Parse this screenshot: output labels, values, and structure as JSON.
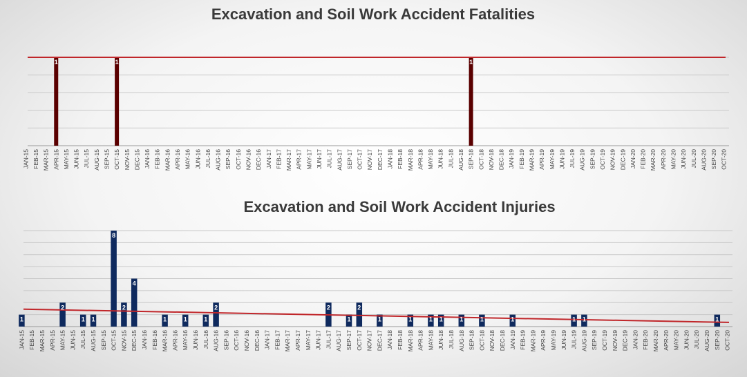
{
  "chart_data": [
    {
      "type": "bar",
      "title": "Excavation and Soil Work Accident Fatalities",
      "xlabel": "",
      "ylabel": "",
      "ylim": [
        0,
        1
      ],
      "grid": true,
      "legend": "none",
      "colors": {
        "bar": "#5a0000",
        "trend": "#c0262a"
      },
      "categories": [
        "JAN-15",
        "FEB-15",
        "MAR-15",
        "APR-15",
        "MAY-15",
        "JUN-15",
        "JUL-15",
        "AUG-15",
        "SEP-15",
        "OCT-15",
        "NOV-15",
        "DEC-15",
        "JAN-16",
        "FEB-16",
        "MAR-16",
        "APR-16",
        "MAY-16",
        "JUN-16",
        "JUL-16",
        "AUG-16",
        "SEP-16",
        "OCT-16",
        "NOV-16",
        "DEC-16",
        "JAN-17",
        "FEB-17",
        "MAR-17",
        "APR-17",
        "MAY-17",
        "JUN-17",
        "JUL-17",
        "AUG-17",
        "SEP-17",
        "OCT-17",
        "NOV-17",
        "DEC-17",
        "JAN-18",
        "FEB-18",
        "MAR-18",
        "APR-18",
        "MAY-18",
        "JUN-18",
        "JUL-18",
        "AUG-18",
        "SEP-18",
        "OCT-18",
        "NOV-18",
        "DEC-18",
        "JAN-19",
        "FEB-19",
        "MAR-19",
        "APR-19",
        "MAY-19",
        "JUN-19",
        "JUL-19",
        "AUG-19",
        "SEP-19",
        "OCT-19",
        "NOV-19",
        "DEC-19",
        "JAN-20",
        "FEB-20",
        "MAR-20",
        "APR-20",
        "MAY-20",
        "JUN-20",
        "JUL-20",
        "AUG-20",
        "SEP-20",
        "OCT-20"
      ],
      "values": [
        0,
        0,
        0,
        1,
        0,
        0,
        0,
        0,
        0,
        1,
        0,
        0,
        0,
        0,
        0,
        0,
        0,
        0,
        0,
        0,
        0,
        0,
        0,
        0,
        0,
        0,
        0,
        0,
        0,
        0,
        0,
        0,
        0,
        0,
        0,
        0,
        0,
        0,
        0,
        0,
        0,
        0,
        0,
        0,
        1,
        0,
        0,
        0,
        0,
        0,
        0,
        0,
        0,
        0,
        0,
        0,
        0,
        0,
        0,
        0,
        0,
        0,
        0,
        0,
        0,
        0,
        0,
        0,
        0,
        0
      ],
      "trendline": {
        "start": 1,
        "end": 1
      }
    },
    {
      "type": "bar",
      "title": "Excavation and Soil Work Accident Injuries",
      "xlabel": "",
      "ylabel": "",
      "ylim": [
        0,
        8
      ],
      "grid": true,
      "legend": "none",
      "colors": {
        "bar": "#0f2a5e",
        "trend": "#c0262a"
      },
      "categories": [
        "JAN-15",
        "FEB-15",
        "MAR-15",
        "APR-15",
        "MAY-15",
        "JUN-15",
        "JUL-15",
        "AUG-15",
        "SEP-15",
        "OCT-15",
        "NOV-15",
        "DEC-15",
        "JAN-16",
        "FEB-16",
        "MAR-16",
        "APR-16",
        "MAY-16",
        "JUN-16",
        "JUL-16",
        "AUG-16",
        "SEP-16",
        "OCT-16",
        "NOV-16",
        "DEC-16",
        "JAN-17",
        "FEB-17",
        "MAR-17",
        "APR-17",
        "MAY-17",
        "JUN-17",
        "JUL-17",
        "AUG-17",
        "SEP-17",
        "OCT-17",
        "NOV-17",
        "DEC-17",
        "JAN-18",
        "FEB-18",
        "MAR-18",
        "APR-18",
        "MAY-18",
        "JUN-18",
        "JUL-18",
        "AUG-18",
        "SEP-18",
        "OCT-18",
        "NOV-18",
        "DEC-18",
        "JAN-19",
        "FEB-19",
        "MAR-19",
        "APR-19",
        "MAY-19",
        "JUN-19",
        "JUL-19",
        "AUG-19",
        "SEP-19",
        "OCT-19",
        "NOV-19",
        "DEC-19",
        "JAN-20",
        "FEB-20",
        "MAR-20",
        "APR-20",
        "MAY-20",
        "JUN-20",
        "JUL-20",
        "AUG-20",
        "SEP-20",
        "OCT-20"
      ],
      "values": [
        1,
        0,
        0,
        0,
        2,
        0,
        1,
        1,
        0,
        8,
        2,
        4,
        0,
        0,
        1,
        0,
        1,
        0,
        1,
        2,
        0,
        0,
        0,
        0,
        0,
        0,
        0,
        0,
        0,
        0,
        2,
        0,
        1,
        2,
        0,
        1,
        0,
        0,
        1,
        0,
        1,
        1,
        0,
        1,
        0,
        1,
        0,
        0,
        1,
        0,
        0,
        0,
        0,
        0,
        1,
        1,
        0,
        0,
        0,
        0,
        0,
        0,
        0,
        0,
        0,
        0,
        0,
        0,
        1,
        0
      ],
      "trendline": {
        "start": 1.45,
        "end": 0.35
      }
    }
  ]
}
